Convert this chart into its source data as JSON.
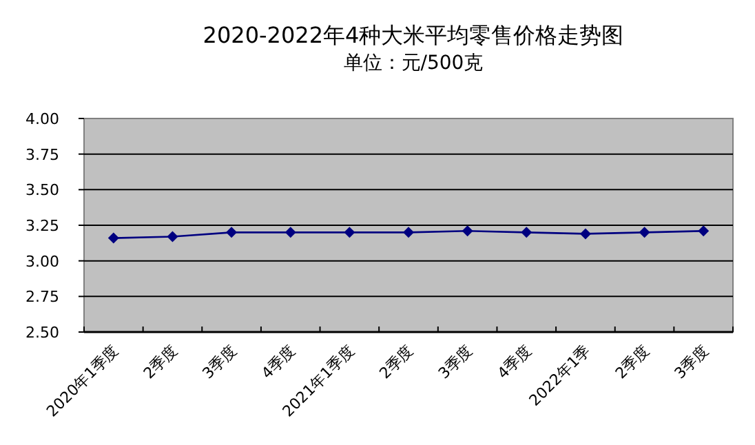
{
  "chart_data": {
    "type": "line",
    "title": "2020-2022年4种大米平均零售价格走势图",
    "subtitle": "单位：元/500克",
    "categories": [
      "2020年1季度",
      "2季度",
      "3季度",
      "4季度",
      "2021年1季度",
      "2季度",
      "3季度",
      "4季度",
      "2022年1季",
      "2季度",
      "3季度"
    ],
    "series": [
      {
        "color": "#000080",
        "values": [
          3.16,
          3.17,
          3.2,
          3.2,
          3.2,
          3.2,
          3.21,
          3.2,
          3.19,
          3.2,
          3.21
        ]
      }
    ],
    "ylim": [
      2.5,
      4.0
    ],
    "yticks": [
      {
        "value": 2.5,
        "label": "2.50"
      },
      {
        "value": 2.75,
        "label": "2.75"
      },
      {
        "value": 3.0,
        "label": "3.00"
      },
      {
        "value": 3.25,
        "label": "3.25"
      },
      {
        "value": 3.5,
        "label": "3.50"
      },
      {
        "value": 3.75,
        "label": "3.75"
      },
      {
        "value": 4.0,
        "label": "4.00"
      }
    ],
    "grid": "y",
    "marker": "diamond",
    "line_style": "solid"
  }
}
